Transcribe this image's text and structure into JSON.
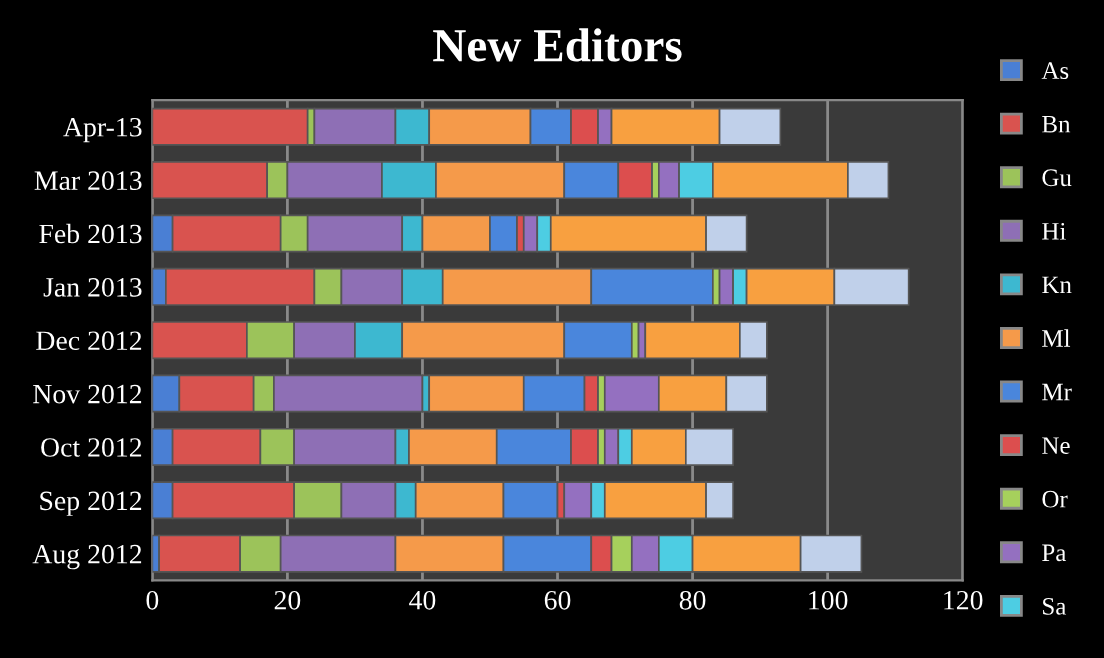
{
  "chart_data": {
    "type": "bar",
    "orientation": "horizontal",
    "stacked": true,
    "title": "New Editors",
    "categories": [
      "Apr-13",
      "Mar 2013",
      "Feb 2013",
      "Jan 2013",
      "Dec 2012",
      "Nov 2012",
      "Oct 2012",
      "Sep 2012",
      "Aug 2012"
    ],
    "series": [
      {
        "name": "As",
        "color": "#4a7fd4",
        "values": [
          0,
          0,
          3,
          2,
          0,
          4,
          3,
          3,
          1
        ]
      },
      {
        "name": "Bn",
        "color": "#d9534f",
        "values": [
          23,
          17,
          16,
          22,
          14,
          11,
          13,
          18,
          12
        ]
      },
      {
        "name": "Gu",
        "color": "#9cc35a",
        "values": [
          1,
          3,
          4,
          4,
          7,
          3,
          5,
          7,
          6
        ]
      },
      {
        "name": "Hi",
        "color": "#8e6fb5",
        "values": [
          12,
          14,
          14,
          9,
          9,
          22,
          15,
          8,
          17
        ]
      },
      {
        "name": "Kn",
        "color": "#3db8d0",
        "values": [
          5,
          8,
          3,
          6,
          7,
          1,
          2,
          3,
          0
        ]
      },
      {
        "name": "Ml",
        "color": "#f59a4a",
        "values": [
          15,
          19,
          10,
          22,
          24,
          14,
          13,
          13,
          16
        ]
      },
      {
        "name": "Mr",
        "color": "#4a86dc",
        "values": [
          6,
          8,
          4,
          18,
          10,
          9,
          11,
          8,
          13
        ]
      },
      {
        "name": "Ne",
        "color": "#dc4e4e",
        "values": [
          4,
          5,
          1,
          0,
          0,
          2,
          4,
          1,
          3
        ]
      },
      {
        "name": "Or",
        "color": "#a6d05c",
        "values": [
          0,
          1,
          0,
          1,
          1,
          1,
          1,
          0,
          3
        ]
      },
      {
        "name": "Pa",
        "color": "#9470c0",
        "values": [
          2,
          3,
          2,
          2,
          1,
          8,
          2,
          4,
          4
        ]
      },
      {
        "name": "Sa",
        "color": "#4dcde3",
        "values": [
          0,
          5,
          2,
          2,
          0,
          0,
          2,
          2,
          5
        ]
      },
      {
        "color": "#f8a040",
        "values": [
          16,
          20,
          23,
          13,
          14,
          10,
          8,
          15,
          16
        ]
      },
      {
        "color": "#c0d0ea",
        "values": [
          9,
          6,
          6,
          11,
          4,
          6,
          7,
          4,
          9
        ]
      }
    ],
    "xlim": [
      0,
      120
    ],
    "xticks": [
      0,
      20,
      40,
      60,
      80,
      100,
      120
    ],
    "grid": "x",
    "legend": "right"
  }
}
